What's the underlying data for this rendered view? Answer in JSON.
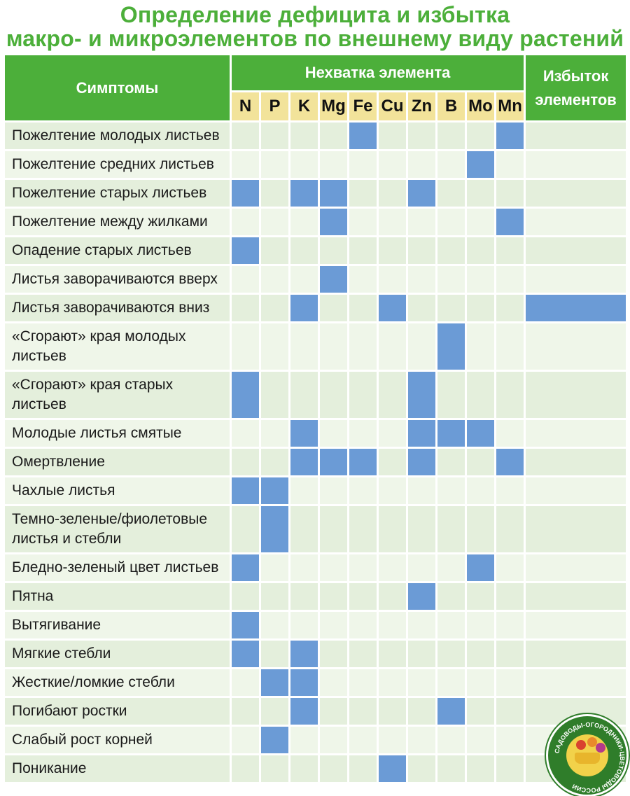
{
  "title": {
    "line1": "Определение дефицита и избытка",
    "line2": "макро- и микроэлементов по внешнему виду растений"
  },
  "header": {
    "symptoms": "Симптомы",
    "deficiency": "Нехватка элемента",
    "excess_line1": "Избыток",
    "excess_line2": "элементов",
    "elements": [
      "N",
      "P",
      "K",
      "Mg",
      "Fe",
      "Cu",
      "Zn",
      "B",
      "Mo",
      "Mn"
    ]
  },
  "rows": [
    {
      "symptom": "Пожелтение молодых листьев",
      "marks": [
        "Fe",
        "Mn"
      ],
      "excess": false
    },
    {
      "symptom": "Пожелтение средних листьев",
      "marks": [
        "Mo"
      ],
      "excess": false
    },
    {
      "symptom": "Пожелтение старых листьев",
      "marks": [
        "N",
        "K",
        "Mg",
        "Zn"
      ],
      "excess": false
    },
    {
      "symptom": "Пожелтение между жилками",
      "marks": [
        "Mg",
        "Mn"
      ],
      "excess": false
    },
    {
      "symptom": "Опадение старых листьев",
      "marks": [
        "N"
      ],
      "excess": false
    },
    {
      "symptom": "Листья заворачиваются вверх",
      "marks": [
        "Mg"
      ],
      "excess": false
    },
    {
      "symptom": "Листья заворачиваются вниз",
      "marks": [
        "K",
        "Cu"
      ],
      "excess": true
    },
    {
      "symptom": "«Сгорают» края молодых листьев",
      "marks": [
        "B"
      ],
      "excess": false
    },
    {
      "symptom": "«Сгорают» края старых листьев",
      "marks": [
        "N",
        "Zn"
      ],
      "excess": false
    },
    {
      "symptom": "Молодые листья смятые",
      "marks": [
        "K",
        "Zn",
        "B",
        "Mo"
      ],
      "excess": false
    },
    {
      "symptom": "Омертвление",
      "marks": [
        "K",
        "Mg",
        "Fe",
        "Zn",
        "Mn"
      ],
      "excess": false
    },
    {
      "symptom": "Чахлые листья",
      "marks": [
        "N",
        "P"
      ],
      "excess": false
    },
    {
      "symptom": "Темно-зеленые/фиолетовые листья и стебли",
      "marks": [
        "P"
      ],
      "excess": false
    },
    {
      "symptom": "Бледно-зеленый цвет листьев",
      "marks": [
        "N",
        "Mo"
      ],
      "excess": false
    },
    {
      "symptom": "Пятна",
      "marks": [
        "Zn"
      ],
      "excess": false
    },
    {
      "symptom": "Вытягивание",
      "marks": [
        "N"
      ],
      "excess": false
    },
    {
      "symptom": "Мягкие стебли",
      "marks": [
        "N",
        "K"
      ],
      "excess": false
    },
    {
      "symptom": "Жесткие/ломкие стебли",
      "marks": [
        "P",
        "K"
      ],
      "excess": false
    },
    {
      "symptom": "Погибают ростки",
      "marks": [
        "K",
        "B"
      ],
      "excess": false
    },
    {
      "symptom": "Слабый рост корней",
      "marks": [
        "P"
      ],
      "excess": false
    },
    {
      "symptom": "Поникание",
      "marks": [
        "Cu"
      ],
      "excess": false
    }
  ],
  "logo": {
    "text": "САДОВОДЫ-ОГОРОДНИКИ-ЦВЕТОВОДЫ РОССИИ"
  },
  "colors": {
    "title": "#4caf3a",
    "header_green": "#4caf3a",
    "element_header": "#f2e39a",
    "mark_blue": "#6b9bd6",
    "row_dark": "#e4efdc",
    "row_light": "#eff6e9"
  }
}
